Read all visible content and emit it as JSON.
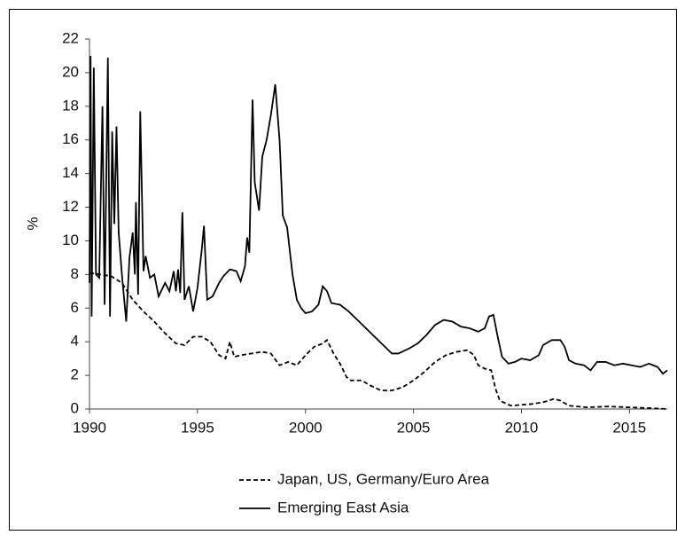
{
  "chart_data": {
    "type": "line",
    "y_label": "%",
    "xlim": [
      1990,
      2016.75
    ],
    "xticks": [
      1990,
      1995,
      2000,
      2005,
      2010,
      2015
    ],
    "ylim": [
      0,
      22
    ],
    "yticks": [
      0,
      2,
      4,
      6,
      8,
      10,
      12,
      14,
      16,
      18,
      20,
      22
    ],
    "grid": false,
    "legend": "bottom",
    "series": [
      {
        "name": "Japan, US, Germany/Euro Area",
        "color": "#000000",
        "line_style": "dashed",
        "x": [
          1990.0,
          1990.5,
          1991.0,
          1991.5,
          1992.0,
          1992.5,
          1993.0,
          1993.5,
          1994.0,
          1994.4,
          1994.8,
          1995.2,
          1995.6,
          1996.0,
          1996.3,
          1996.5,
          1996.7,
          1997.0,
          1997.5,
          1998.0,
          1998.4,
          1998.8,
          1999.2,
          1999.6,
          2000.0,
          2000.4,
          2000.8,
          2001.0,
          2001.3,
          2001.6,
          2001.9,
          2002.1,
          2002.6,
          2003.0,
          2003.5,
          2004.0,
          2004.5,
          2005.0,
          2005.5,
          2006.0,
          2006.5,
          2007.0,
          2007.5,
          2007.8,
          2008.0,
          2008.3,
          2008.6,
          2008.8,
          2009.0,
          2009.5,
          2010.0,
          2010.5,
          2011.0,
          2011.5,
          2011.8,
          2012.2,
          2013.0,
          2014.0,
          2015.0,
          2016.0,
          2016.75
        ],
        "values": [
          8.1,
          8.0,
          7.9,
          7.5,
          6.5,
          5.8,
          5.2,
          4.5,
          3.9,
          3.8,
          4.3,
          4.3,
          4.0,
          3.2,
          3.0,
          4.0,
          3.1,
          3.2,
          3.3,
          3.4,
          3.3,
          2.6,
          2.8,
          2.6,
          3.2,
          3.7,
          3.9,
          4.1,
          3.3,
          2.7,
          1.9,
          1.7,
          1.7,
          1.4,
          1.1,
          1.1,
          1.3,
          1.7,
          2.2,
          2.8,
          3.2,
          3.4,
          3.5,
          3.2,
          2.6,
          2.4,
          2.3,
          1.2,
          0.5,
          0.2,
          0.25,
          0.3,
          0.4,
          0.6,
          0.5,
          0.2,
          0.1,
          0.15,
          0.1,
          0.05,
          0.0
        ]
      },
      {
        "name": "Emerging East Asia",
        "color": "#000000",
        "line_style": "solid",
        "x": [
          1990.0,
          1990.05,
          1990.1,
          1990.2,
          1990.3,
          1990.45,
          1990.6,
          1990.7,
          1990.85,
          1990.95,
          1991.05,
          1991.15,
          1991.25,
          1991.35,
          1991.5,
          1991.7,
          1991.85,
          1992.0,
          1992.1,
          1992.15,
          1992.25,
          1992.35,
          1992.5,
          1992.6,
          1992.8,
          1993.0,
          1993.2,
          1993.5,
          1993.7,
          1993.9,
          1994.0,
          1994.1,
          1994.2,
          1994.3,
          1994.4,
          1994.6,
          1994.8,
          1995.0,
          1995.2,
          1995.3,
          1995.45,
          1995.7,
          1996.0,
          1996.2,
          1996.5,
          1996.8,
          1997.0,
          1997.2,
          1997.3,
          1997.4,
          1997.55,
          1997.65,
          1997.85,
          1998.0,
          1998.2,
          1998.4,
          1998.6,
          1998.8,
          1998.95,
          1999.15,
          1999.4,
          1999.6,
          1999.8,
          2000.0,
          2000.3,
          2000.6,
          2000.8,
          2001.0,
          2001.2,
          2001.6,
          2002.0,
          2002.4,
          2002.8,
          2003.2,
          2003.6,
          2004.0,
          2004.3,
          2004.8,
          2005.2,
          2005.6,
          2006.0,
          2006.4,
          2006.8,
          2007.2,
          2007.6,
          2008.0,
          2008.3,
          2008.5,
          2008.7,
          2008.9,
          2009.1,
          2009.4,
          2009.7,
          2010.0,
          2010.4,
          2010.8,
          2011.0,
          2011.4,
          2011.8,
          2012.0,
          2012.2,
          2012.5,
          2012.9,
          2013.2,
          2013.5,
          2013.9,
          2014.3,
          2014.7,
          2015.1,
          2015.5,
          2015.9,
          2016.3,
          2016.55,
          2016.75
        ],
        "values": [
          7.5,
          21,
          5.5,
          20.3,
          8,
          7.8,
          18,
          6.2,
          20.9,
          5.5,
          16.5,
          11,
          16.8,
          10.5,
          8,
          5.2,
          9,
          10.5,
          8,
          12.3,
          6.8,
          17.7,
          8.2,
          9.1,
          7.8,
          8,
          6.7,
          7.5,
          7,
          8.2,
          7,
          8.3,
          6.9,
          11.7,
          6.5,
          7.3,
          5.8,
          7.2,
          9.5,
          10.9,
          6.5,
          6.7,
          7.5,
          7.9,
          8.3,
          8.2,
          7.6,
          8.5,
          10.2,
          9.3,
          18.4,
          13.5,
          11.8,
          15,
          16,
          17.5,
          19.3,
          16,
          11.5,
          10.8,
          8,
          6.5,
          6,
          5.7,
          5.8,
          6.2,
          7.3,
          7,
          6.3,
          6.2,
          5.8,
          5.3,
          4.8,
          4.3,
          3.8,
          3.3,
          3.3,
          3.6,
          3.9,
          4.4,
          5,
          5.3,
          5.2,
          4.9,
          4.8,
          4.6,
          4.8,
          5.5,
          5.6,
          4.3,
          3.1,
          2.7,
          2.8,
          3,
          2.9,
          3.2,
          3.8,
          4.1,
          4.1,
          3.7,
          2.9,
          2.7,
          2.6,
          2.3,
          2.8,
          2.8,
          2.6,
          2.7,
          2.6,
          2.5,
          2.7,
          2.5,
          2.1,
          2.3
        ]
      }
    ]
  }
}
